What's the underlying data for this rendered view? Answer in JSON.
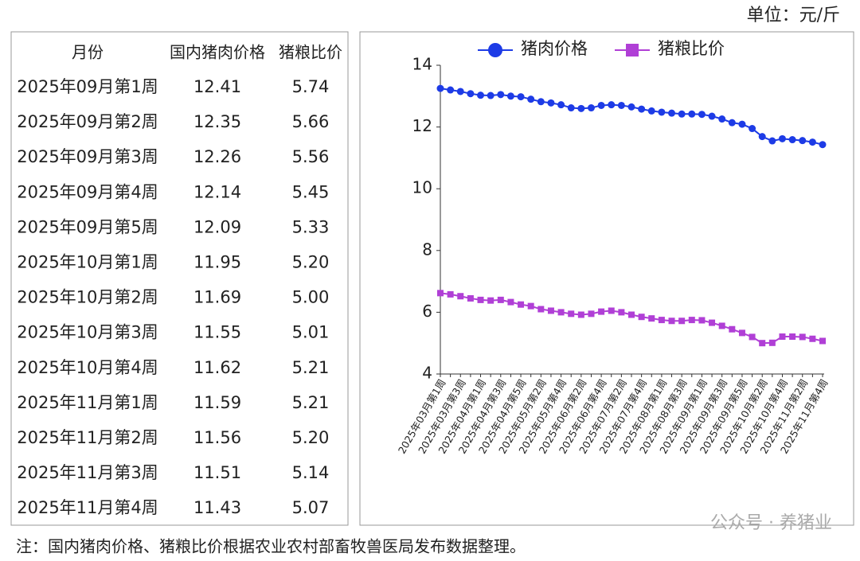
{
  "unit": "单位：元/斤",
  "table": {
    "header": [
      "月份",
      "国内猪肉价格",
      "猪粮比价"
    ],
    "rows": [
      [
        "2025年09月第1周",
        "12.41",
        "5.74"
      ],
      [
        "2025年09月第2周",
        "12.35",
        "5.66"
      ],
      [
        "2025年09月第3周",
        "12.26",
        "5.56"
      ],
      [
        "2025年09月第4周",
        "12.14",
        "5.45"
      ],
      [
        "2025年09月第5周",
        "12.09",
        "5.33"
      ],
      [
        "2025年10月第1周",
        "11.95",
        "5.20"
      ],
      [
        "2025年10月第2周",
        "11.69",
        "5.00"
      ],
      [
        "2025年10月第3周",
        "11.55",
        "5.01"
      ],
      [
        "2025年10月第4周",
        "11.62",
        "5.21"
      ],
      [
        "2025年11月第1周",
        "11.59",
        "5.21"
      ],
      [
        "2025年11月第2周",
        "11.56",
        "5.20"
      ],
      [
        "2025年11月第3周",
        "11.51",
        "5.14"
      ],
      [
        "2025年11月第4周",
        "11.43",
        "5.07"
      ]
    ]
  },
  "chart_data": {
    "type": "line",
    "categories": [
      "2025年03月第1周",
      null,
      "2025年03月第3周",
      null,
      "2025年04月第1周",
      null,
      "2025年04月第3周",
      null,
      "2025年04月第5周",
      null,
      "2025年05月第2周",
      null,
      "2025年05月第4周",
      null,
      "2025年06月第2周",
      null,
      "2025年06月第4周",
      null,
      "2025年07月第2周",
      null,
      "2025年07月第4周",
      null,
      "2025年08月第1周",
      null,
      "2025年08月第3周",
      null,
      "2025年09月第1周",
      null,
      "2025年09月第3周",
      null,
      "2025年09月第5周",
      null,
      "2025年10月第2周",
      null,
      "2025年10月第4周",
      null,
      "2025年11月第2周",
      null,
      "2025年11月第4周"
    ],
    "series": [
      {
        "name": "猪肉价格",
        "color": "#1d3be6",
        "marker": "circle",
        "values": [
          13.25,
          13.2,
          13.15,
          13.08,
          13.03,
          13.02,
          13.05,
          13.0,
          12.98,
          12.9,
          12.82,
          12.78,
          12.72,
          12.62,
          12.6,
          12.62,
          12.7,
          12.72,
          12.7,
          12.65,
          12.58,
          12.52,
          12.48,
          12.45,
          12.42,
          12.42,
          12.41,
          12.35,
          12.26,
          12.14,
          12.09,
          11.95,
          11.69,
          11.55,
          11.62,
          11.59,
          11.56,
          11.51,
          11.43
        ]
      },
      {
        "name": "猪粮比价",
        "color": "#b03fd6",
        "marker": "square",
        "values": [
          6.62,
          6.58,
          6.52,
          6.45,
          6.4,
          6.38,
          6.4,
          6.33,
          6.25,
          6.2,
          6.1,
          6.05,
          6.0,
          5.95,
          5.92,
          5.95,
          6.02,
          6.05,
          6.0,
          5.92,
          5.85,
          5.8,
          5.75,
          5.72,
          5.72,
          5.75,
          5.74,
          5.66,
          5.56,
          5.45,
          5.33,
          5.2,
          5.0,
          5.01,
          5.21,
          5.21,
          5.2,
          5.14,
          5.07
        ]
      }
    ],
    "ylim": [
      4,
      14
    ],
    "yticks": [
      4,
      6,
      8,
      10,
      12,
      14
    ],
    "grid": false,
    "legend": "top"
  },
  "note": "注：国内猪肉价格、猪粮比价根据农业农村部畜牧兽医局发布数据整理。",
  "watermark": "公众号 · 养猪业"
}
